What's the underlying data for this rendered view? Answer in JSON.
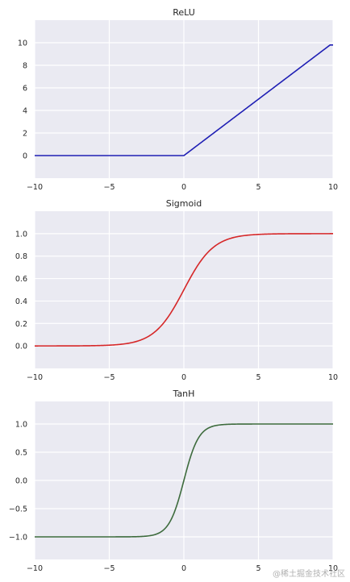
{
  "watermark": "@稀土掘金技术社区",
  "chart_data": [
    {
      "type": "line",
      "title": "ReLU",
      "function": "relu",
      "color": "#1f1fb4",
      "xlim": [
        -10,
        10
      ],
      "ylim": [
        -2,
        12
      ],
      "xticks": [
        -10,
        -5,
        0,
        5,
        10
      ],
      "xtick_labels": [
        "−10",
        "−5",
        "0",
        "5",
        "10"
      ],
      "yticks": [
        0,
        2,
        4,
        6,
        8,
        10
      ],
      "ytick_labels": [
        "0",
        "2",
        "4",
        "6",
        "8",
        "10"
      ],
      "x": [
        -10,
        -5,
        0,
        5,
        10
      ],
      "y": [
        0,
        0,
        0,
        5,
        9.8
      ],
      "grid": true
    },
    {
      "type": "line",
      "title": "Sigmoid",
      "function": "sigmoid",
      "color": "#d62728",
      "xlim": [
        -10,
        10
      ],
      "ylim": [
        -0.2,
        1.2
      ],
      "xticks": [
        -10,
        -5,
        0,
        5,
        10
      ],
      "xtick_labels": [
        "−10",
        "−5",
        "0",
        "5",
        "10"
      ],
      "yticks": [
        0.0,
        0.2,
        0.4,
        0.6,
        0.8,
        1.0
      ],
      "ytick_labels": [
        "0.0",
        "0.2",
        "0.4",
        "0.6",
        "0.8",
        "1.0"
      ],
      "x": [
        -10,
        -5,
        -2,
        0,
        2,
        5,
        10
      ],
      "y": [
        0.0,
        0.007,
        0.12,
        0.5,
        0.88,
        0.993,
        1.0
      ],
      "grid": true
    },
    {
      "type": "line",
      "title": "TanH",
      "function": "tanh",
      "color": "#3d6b3d",
      "xlim": [
        -10,
        10
      ],
      "ylim": [
        -1.4,
        1.4
      ],
      "xticks": [
        -10,
        -5,
        0,
        5,
        10
      ],
      "xtick_labels": [
        "−10",
        "−5",
        "0",
        "5",
        "10"
      ],
      "yticks": [
        -1.0,
        -0.5,
        0.0,
        0.5,
        1.0
      ],
      "ytick_labels": [
        "−1.0",
        "−0.5",
        "0.0",
        "0.5",
        "1.0"
      ],
      "x": [
        -10,
        -5,
        -1,
        0,
        1,
        5,
        10
      ],
      "y": [
        -1.0,
        -1.0,
        -0.76,
        0.0,
        0.76,
        1.0,
        1.0
      ],
      "grid": true
    }
  ]
}
